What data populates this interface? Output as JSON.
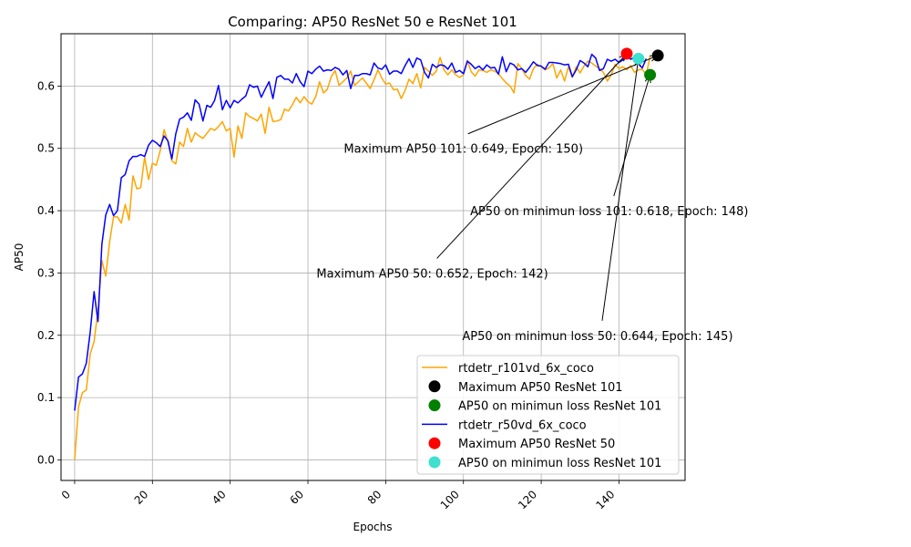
{
  "chart_data": {
    "type": "line",
    "title": "Comparing: AP50 ResNet 50 e ResNet 101",
    "xlabel": "Epochs",
    "ylabel": "AP50",
    "xlim": [
      -3.5,
      157
    ],
    "ylim": [
      -0.033,
      0.684
    ],
    "xticks": [
      0,
      20,
      40,
      60,
      80,
      100,
      120,
      140
    ],
    "yticks": [
      0.0,
      0.1,
      0.2,
      0.3,
      0.4,
      0.5,
      0.6
    ],
    "ytick_labels": [
      "0.0",
      "0.1",
      "0.2",
      "0.3",
      "0.4",
      "0.5",
      "0.6"
    ],
    "grid": true,
    "legend_position": "lower-right",
    "series": [
      {
        "name": "rtdetr_r101vd_6x_coco",
        "color": "#ffa500",
        "values": [
          0.0,
          0.085,
          0.108,
          0.112,
          0.17,
          0.19,
          0.24,
          0.32,
          0.295,
          0.35,
          0.39,
          0.39,
          0.38,
          0.41,
          0.385,
          0.456,
          0.435,
          0.437,
          0.486,
          0.45,
          0.476,
          0.473,
          0.496,
          0.53,
          0.51,
          0.48,
          0.475,
          0.51,
          0.503,
          0.532,
          0.51,
          0.525,
          0.52,
          0.516,
          0.524,
          0.532,
          0.529,
          0.535,
          0.543,
          0.528,
          0.532,
          0.486,
          0.536,
          0.516,
          0.557,
          0.551,
          0.548,
          0.544,
          0.555,
          0.524,
          0.566,
          0.543,
          0.544,
          0.546,
          0.563,
          0.56,
          0.57,
          0.582,
          0.573,
          0.583,
          0.575,
          0.571,
          0.583,
          0.607,
          0.589,
          0.595,
          0.615,
          0.625,
          0.601,
          0.607,
          0.613,
          0.624,
          0.601,
          0.607,
          0.613,
          0.605,
          0.596,
          0.61,
          0.626,
          0.613,
          0.603,
          0.605,
          0.594,
          0.595,
          0.58,
          0.593,
          0.611,
          0.604,
          0.62,
          0.597,
          0.63,
          0.624,
          0.617,
          0.624,
          0.646,
          0.626,
          0.618,
          0.626,
          0.618,
          0.614,
          0.618,
          0.641,
          0.623,
          0.616,
          0.626,
          0.625,
          0.622,
          0.626,
          0.624,
          0.62,
          0.612,
          0.605,
          0.6,
          0.589,
          0.636,
          0.628,
          0.617,
          0.611,
          0.628,
          0.635,
          0.631,
          0.626,
          0.629,
          0.636,
          0.613,
          0.626,
          0.608,
          0.631,
          0.614,
          0.631,
          0.621,
          0.632,
          0.64,
          0.637,
          0.632,
          0.628,
          0.622,
          0.608,
          0.618,
          0.635,
          0.628,
          0.631,
          0.626,
          0.633,
          0.622,
          0.626,
          0.627,
          0.618,
          0.648
        ]
      },
      {
        "name": "rtdetr_r50vd_6x_coco",
        "color": "#0000ff",
        "values": [
          0.079,
          0.133,
          0.138,
          0.155,
          0.205,
          0.27,
          0.222,
          0.346,
          0.393,
          0.41,
          0.392,
          0.4,
          0.453,
          0.458,
          0.48,
          0.487,
          0.487,
          0.49,
          0.487,
          0.505,
          0.513,
          0.509,
          0.503,
          0.52,
          0.512,
          0.483,
          0.523,
          0.547,
          0.55,
          0.557,
          0.545,
          0.578,
          0.571,
          0.544,
          0.569,
          0.566,
          0.577,
          0.601,
          0.562,
          0.577,
          0.565,
          0.577,
          0.573,
          0.579,
          0.584,
          0.602,
          0.598,
          0.6,
          0.582,
          0.595,
          0.607,
          0.58,
          0.614,
          0.617,
          0.611,
          0.611,
          0.605,
          0.62,
          0.607,
          0.599,
          0.624,
          0.62,
          0.627,
          0.632,
          0.624,
          0.626,
          0.625,
          0.63,
          0.627,
          0.618,
          0.625,
          0.596,
          0.617,
          0.617,
          0.62,
          0.62,
          0.618,
          0.637,
          0.629,
          0.627,
          0.634,
          0.619,
          0.624,
          0.624,
          0.62,
          0.633,
          0.644,
          0.63,
          0.645,
          0.642,
          0.622,
          0.613,
          0.635,
          0.63,
          0.634,
          0.633,
          0.627,
          0.637,
          0.622,
          0.625,
          0.62,
          0.64,
          0.635,
          0.628,
          0.632,
          0.626,
          0.634,
          0.629,
          0.63,
          0.619,
          0.647,
          0.623,
          0.637,
          0.634,
          0.626,
          0.628,
          0.622,
          0.63,
          0.639,
          0.633,
          0.632,
          0.627,
          0.638,
          0.638,
          0.637,
          0.636,
          0.634,
          0.635,
          0.615,
          0.626,
          0.641,
          0.637,
          0.631,
          0.651,
          0.645,
          0.625,
          0.628,
          0.643,
          0.64,
          0.643,
          0.638,
          0.642,
          0.652,
          0.643,
          0.646,
          0.636,
          0.629,
          0.644
        ]
      }
    ],
    "markers": [
      {
        "name": "Maximum AP50 ResNet 101",
        "x": 150,
        "y": 0.649,
        "color": "#000000"
      },
      {
        "name": "AP50 on minimun loss ResNet 101",
        "x": 148,
        "y": 0.618,
        "color": "#008000"
      },
      {
        "name": "Maximum AP50 ResNet 50",
        "x": 142,
        "y": 0.652,
        "color": "#ff0000"
      },
      {
        "name": "AP50 on minimun loss ResNet 101",
        "x": 145,
        "y": 0.644,
        "color": "#40e0d0"
      }
    ],
    "annotations": [
      {
        "text": "Maximum AP50 101: 0.649, Epoch: 150)",
        "target_x": 150,
        "target_y": 0.649,
        "text_x": 100,
        "text_y": 0.5
      },
      {
        "text": "AP50 on minimun loss 101: 0.618, Epoch: 148)",
        "target_x": 148,
        "target_y": 0.618,
        "text_x": 137.5,
        "text_y": 0.4
      },
      {
        "text": "Maximum AP50 50: 0.652, Epoch: 142)",
        "target_x": 142,
        "target_y": 0.652,
        "text_x": 92,
        "text_y": 0.3
      },
      {
        "text": "AP50 on minimun loss 50: 0.644, Epoch: 145)",
        "target_x": 145,
        "target_y": 0.644,
        "text_x": 134.5,
        "text_y": 0.2
      }
    ],
    "legend": [
      {
        "label": "rtdetr_r101vd_6x_coco",
        "kind": "line",
        "color": "#ffa500"
      },
      {
        "label": "Maximum AP50 ResNet 101",
        "kind": "marker",
        "color": "#000000"
      },
      {
        "label": "AP50 on minimun loss ResNet 101",
        "kind": "marker",
        "color": "#008000"
      },
      {
        "label": "rtdetr_r50vd_6x_coco",
        "kind": "line",
        "color": "#0000ff"
      },
      {
        "label": "Maximum AP50 ResNet 50",
        "kind": "marker",
        "color": "#ff0000"
      },
      {
        "label": "AP50 on minimun loss ResNet 101",
        "kind": "marker",
        "color": "#40e0d0"
      }
    ]
  }
}
